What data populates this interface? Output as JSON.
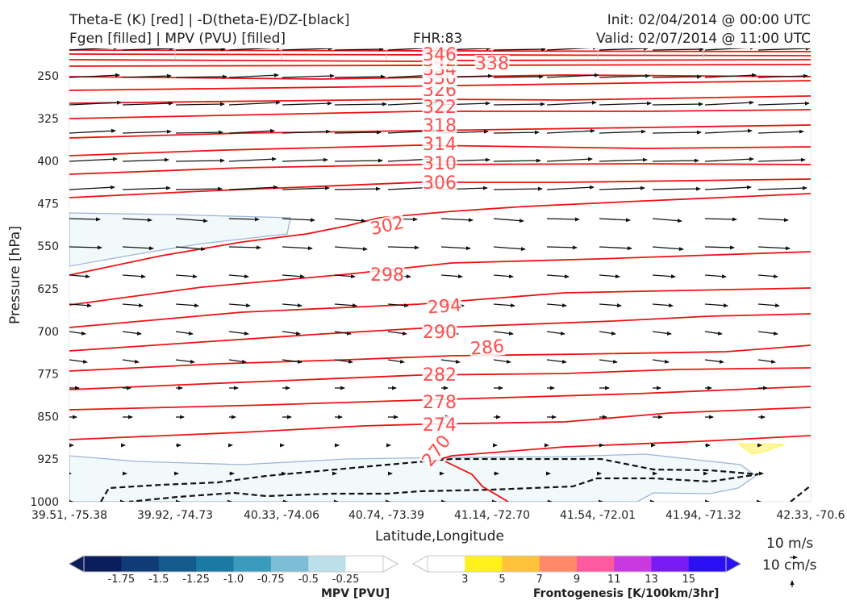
{
  "header": {
    "title_line1": "Theta-E (K) [red] | -D(theta-E)/DZ-[black]",
    "title_line2": "Fgen [filled] | MPV (PVU) [filled]",
    "fhr": "FHR:83",
    "init": "Init: 02/04/2014 @ 00:00 UTC",
    "valid": "Valid: 02/07/2014 @ 11:00 UTC"
  },
  "chart_data": {
    "type": "cross-section",
    "xlabel": "Latitude,Longitude",
    "ylabel": "Pressure [hPa]",
    "x_ticks": [
      "39.51, -75.38",
      "39.92, -74.73",
      "40.33, -74.06",
      "40.74, -73.39",
      "41.14, -72.70",
      "41.54, -72.01",
      "41.94, -71.32",
      "42.33, -70.6"
    ],
    "y_ticks": [
      250,
      325,
      400,
      475,
      550,
      625,
      700,
      775,
      850,
      925,
      1000
    ],
    "ylim": [
      1000,
      190
    ],
    "theta_e_contours": [
      {
        "value": 270,
        "label": "270"
      },
      {
        "value": 274,
        "label": "274"
      },
      {
        "value": 278,
        "label": "278"
      },
      {
        "value": 282,
        "label": "282"
      },
      {
        "value": 286,
        "label": "286"
      },
      {
        "value": 290,
        "label": "290"
      },
      {
        "value": 294,
        "label": "294"
      },
      {
        "value": 298,
        "label": "298"
      },
      {
        "value": 302,
        "label": "302"
      },
      {
        "value": 306,
        "label": "306"
      },
      {
        "value": 310,
        "label": "310"
      },
      {
        "value": 314,
        "label": "314"
      },
      {
        "value": 318,
        "label": "318"
      },
      {
        "value": 322,
        "label": "322"
      },
      {
        "value": 326,
        "label": "326"
      },
      {
        "value": 330,
        "label": "330"
      },
      {
        "value": 334,
        "label": "334"
      },
      {
        "value": 338,
        "label": "338"
      },
      {
        "value": 342,
        "label": "342"
      },
      {
        "value": 346,
        "label": "346"
      }
    ],
    "mpv_colorbar": {
      "label": "MPV [PVU]",
      "ticks": [
        "-1.75",
        "-1.5",
        "-1.25",
        "-1.0",
        "-0.75",
        "-0.5",
        "-0.25"
      ],
      "colors": [
        "#0b1d5a",
        "#103a78",
        "#145a8e",
        "#1a7aa3",
        "#3a9bbf",
        "#7dbdd6",
        "#bcdfe9",
        "#ffffff"
      ]
    },
    "fgen_colorbar": {
      "label": "Frontogenesis [K/100km/3hr]",
      "ticks": [
        "3",
        "5",
        "7",
        "9",
        "11",
        "13",
        "15"
      ],
      "colors": [
        "#ffffff",
        "#fff21a",
        "#ffc23a",
        "#ff8a6a",
        "#ff5aa0",
        "#c83ae0",
        "#7a1af5",
        "#2b10f5"
      ]
    },
    "wind_scale": {
      "horizontal": "10 m/s",
      "vertical": "10 cm/s"
    }
  }
}
